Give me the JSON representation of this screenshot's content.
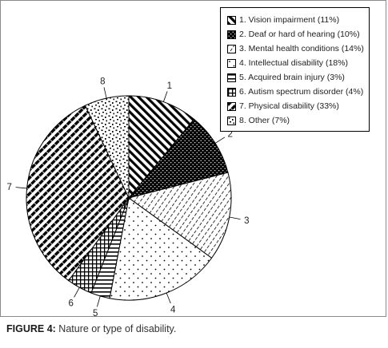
{
  "caption": {
    "label": "FIGURE 4:",
    "text": " Nature or type of disability."
  },
  "chart_data": {
    "type": "pie",
    "title": "",
    "start_angle_deg": 0,
    "direction": "clockwise",
    "legend_position": "top-right",
    "slices": [
      {
        "number": "1",
        "label": "1. Vision impairment (11%)",
        "value": 11,
        "pattern": "diag-up-dense"
      },
      {
        "number": "2",
        "label": "2. Deaf or hard of hearing (10%)",
        "value": 10,
        "pattern": "black-dots"
      },
      {
        "number": "3",
        "label": "3. Mental health conditions (14%)",
        "value": 14,
        "pattern": "diag-down-dashed"
      },
      {
        "number": "4",
        "label": "4. Intellectual disability (18%)",
        "value": 18,
        "pattern": "sparse-dots"
      },
      {
        "number": "5",
        "label": "5. Acquired brain injury (3%)",
        "value": 3,
        "pattern": "horizontal-lines"
      },
      {
        "number": "6",
        "label": "6. Autism spectrum disorder (4%)",
        "value": 4,
        "pattern": "grid"
      },
      {
        "number": "7",
        "label": "7. Physical disability (33%)",
        "value": 33,
        "pattern": "diag-down-bold"
      },
      {
        "number": "8",
        "label": "8. Other (7%)",
        "value": 7,
        "pattern": "confetti"
      }
    ]
  }
}
